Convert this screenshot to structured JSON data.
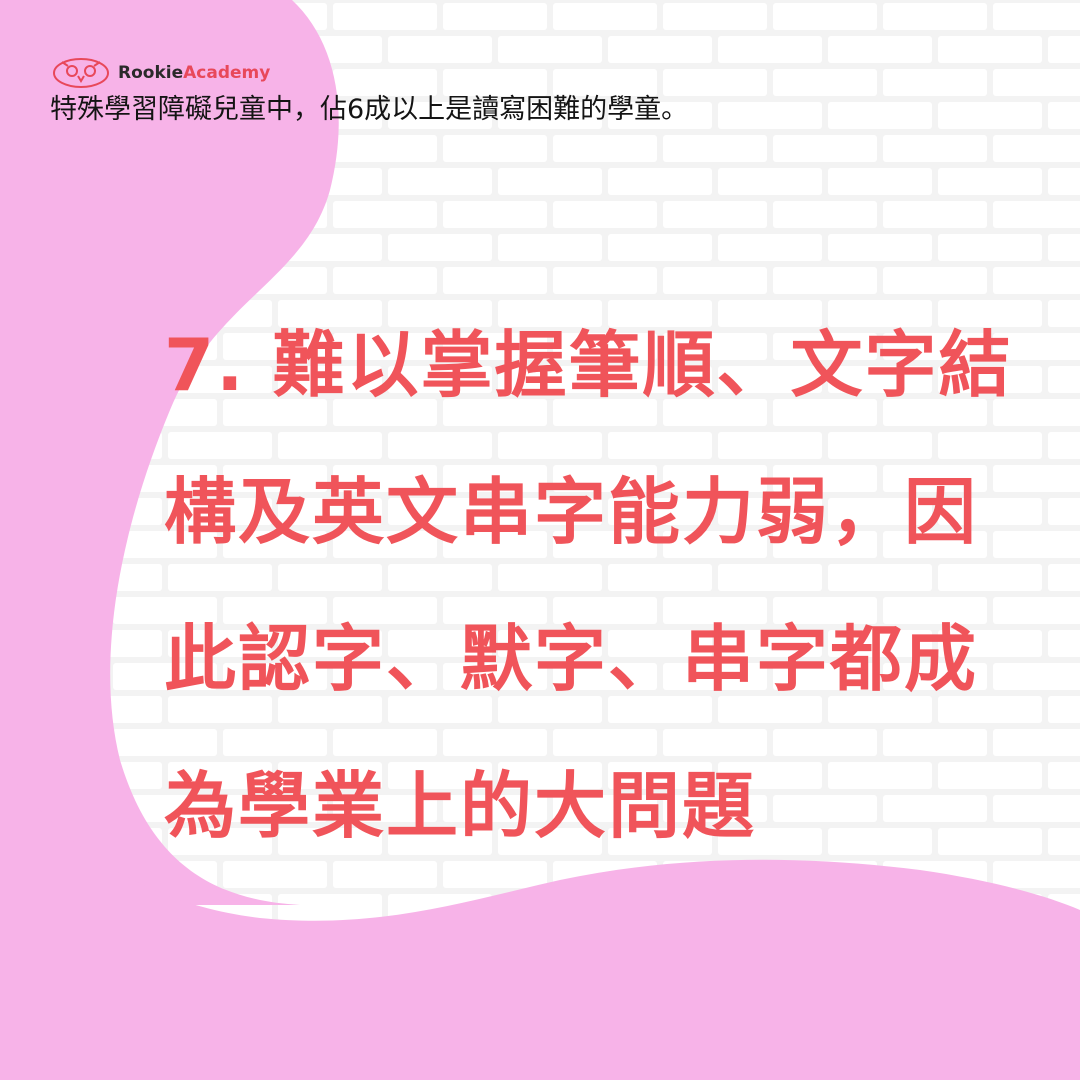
{
  "brand": {
    "name_part1": "Rookie",
    "name_part2": "Academy",
    "logo_icon": "owl-icon",
    "text_color": "#2a2a2a",
    "accent_color": "#e8485a"
  },
  "subtitle": "特殊學習障礙兒童中，佔6成以上是讀寫困難的學童。",
  "headline": {
    "lines": [
      "7. 難以掌握筆順、文字結",
      "構及英文串字能力弱，因",
      "此認字、默字、串字都成",
      "為學業上的大問題"
    ],
    "color": "#f0545a"
  },
  "background": {
    "blob_color": "#f7b3e8",
    "wall_color": "#f2f2f2"
  }
}
